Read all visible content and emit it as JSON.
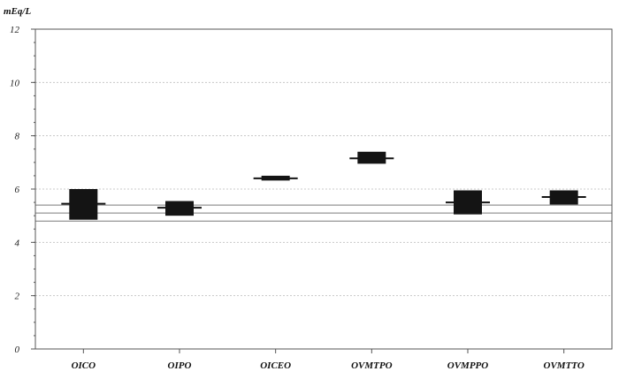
{
  "chart_data": {
    "type": "box",
    "unit_label": "mEq/L",
    "ylim": [
      0,
      12
    ],
    "yticks": [
      0,
      2,
      4,
      6,
      8,
      10,
      12
    ],
    "grid": true,
    "categories": [
      "OICO",
      "OIPO",
      "OICEO",
      "OVMTPO",
      "OVMPPO",
      "OVMTTO"
    ],
    "boxes": [
      {
        "label": "OICO",
        "low": 4.85,
        "high": 6.0,
        "median": 5.45
      },
      {
        "label": "OIPO",
        "low": 5.0,
        "high": 5.55,
        "median": 5.3
      },
      {
        "label": "OICEO",
        "low": 6.32,
        "high": 6.5,
        "median": 6.4
      },
      {
        "label": "OVMTPO",
        "low": 6.95,
        "high": 7.4,
        "median": 7.15
      },
      {
        "label": "OVMPPO",
        "low": 5.05,
        "high": 5.95,
        "median": 5.5
      },
      {
        "label": "OVMTTO",
        "low": 5.42,
        "high": 5.95,
        "median": 5.7
      }
    ],
    "reference_lines": [
      5.4,
      5.1,
      4.8
    ],
    "colors": {
      "box": "#141414",
      "reference": "#7a7a7a",
      "grid": "#c8c8c8"
    }
  }
}
